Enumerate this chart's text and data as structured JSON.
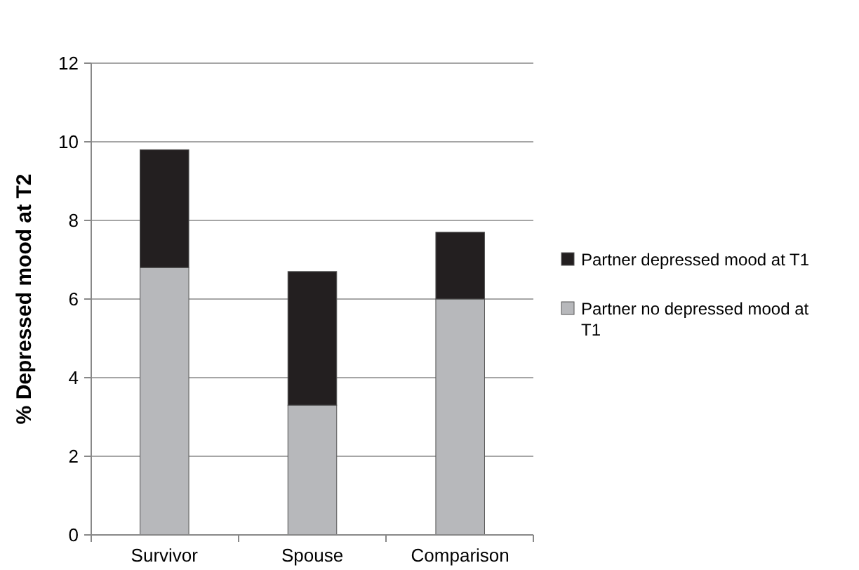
{
  "chart_data": {
    "type": "bar",
    "stacked": true,
    "ylabel": "% Depressed mood at T2",
    "categories": [
      "Survivor",
      "Spouse",
      "Comparison"
    ],
    "series": [
      {
        "name": "Partner no depressed mood at T1",
        "color": "#b7b8bb",
        "values": [
          6.8,
          3.3,
          6.0
        ]
      },
      {
        "name": "Partner depressed mood at T1",
        "color": "#231f20",
        "values": [
          3.0,
          3.4,
          1.7
        ]
      }
    ],
    "ylim": [
      0,
      12
    ],
    "yticks": [
      0,
      2,
      4,
      6,
      8,
      10,
      12
    ],
    "grid": "y",
    "legend": "right"
  }
}
